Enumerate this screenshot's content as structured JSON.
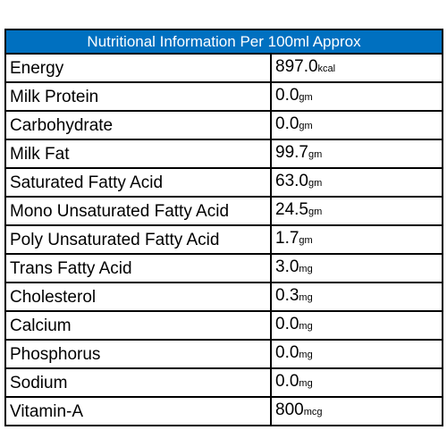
{
  "header": "Nutritional Information Per 100ml Approx",
  "rows": [
    {
      "name": "Energy",
      "value": "897.0",
      "unit": "kcal"
    },
    {
      "name": "Milk Protein",
      "value": "0.0",
      "unit": "gm"
    },
    {
      "name": "Carbohydrate",
      "value": "0.0",
      "unit": "gm"
    },
    {
      "name": "Milk Fat",
      "value": "99.7",
      "unit": "gm"
    },
    {
      "name": "Saturated Fatty Acid",
      "value": "63.0",
      "unit": "gm"
    },
    {
      "name": "Mono Unsaturated Fatty Acid",
      "value": "24.5",
      "unit": "gm"
    },
    {
      "name": "Poly Unsaturated Fatty Acid",
      "value": "1.7",
      "unit": "gm"
    },
    {
      "name": "Trans Fatty Acid",
      "value": "3.0",
      "unit": "mg"
    },
    {
      "name": "Cholesterol",
      "value": "0.3",
      "unit": "mg"
    },
    {
      "name": "Calcium",
      "value": "0.0",
      "unit": "mg"
    },
    {
      "name": "Phosphorus",
      "value": "0.0",
      "unit": "mg"
    },
    {
      "name": "Sodium",
      "value": "0.0",
      "unit": "mg"
    },
    {
      "name": "Vitamin-A",
      "value": "800",
      "unit": "mcg"
    }
  ],
  "colors": {
    "header_background": "#0070c0",
    "header_text": "#ffffff",
    "border": "#000000"
  }
}
